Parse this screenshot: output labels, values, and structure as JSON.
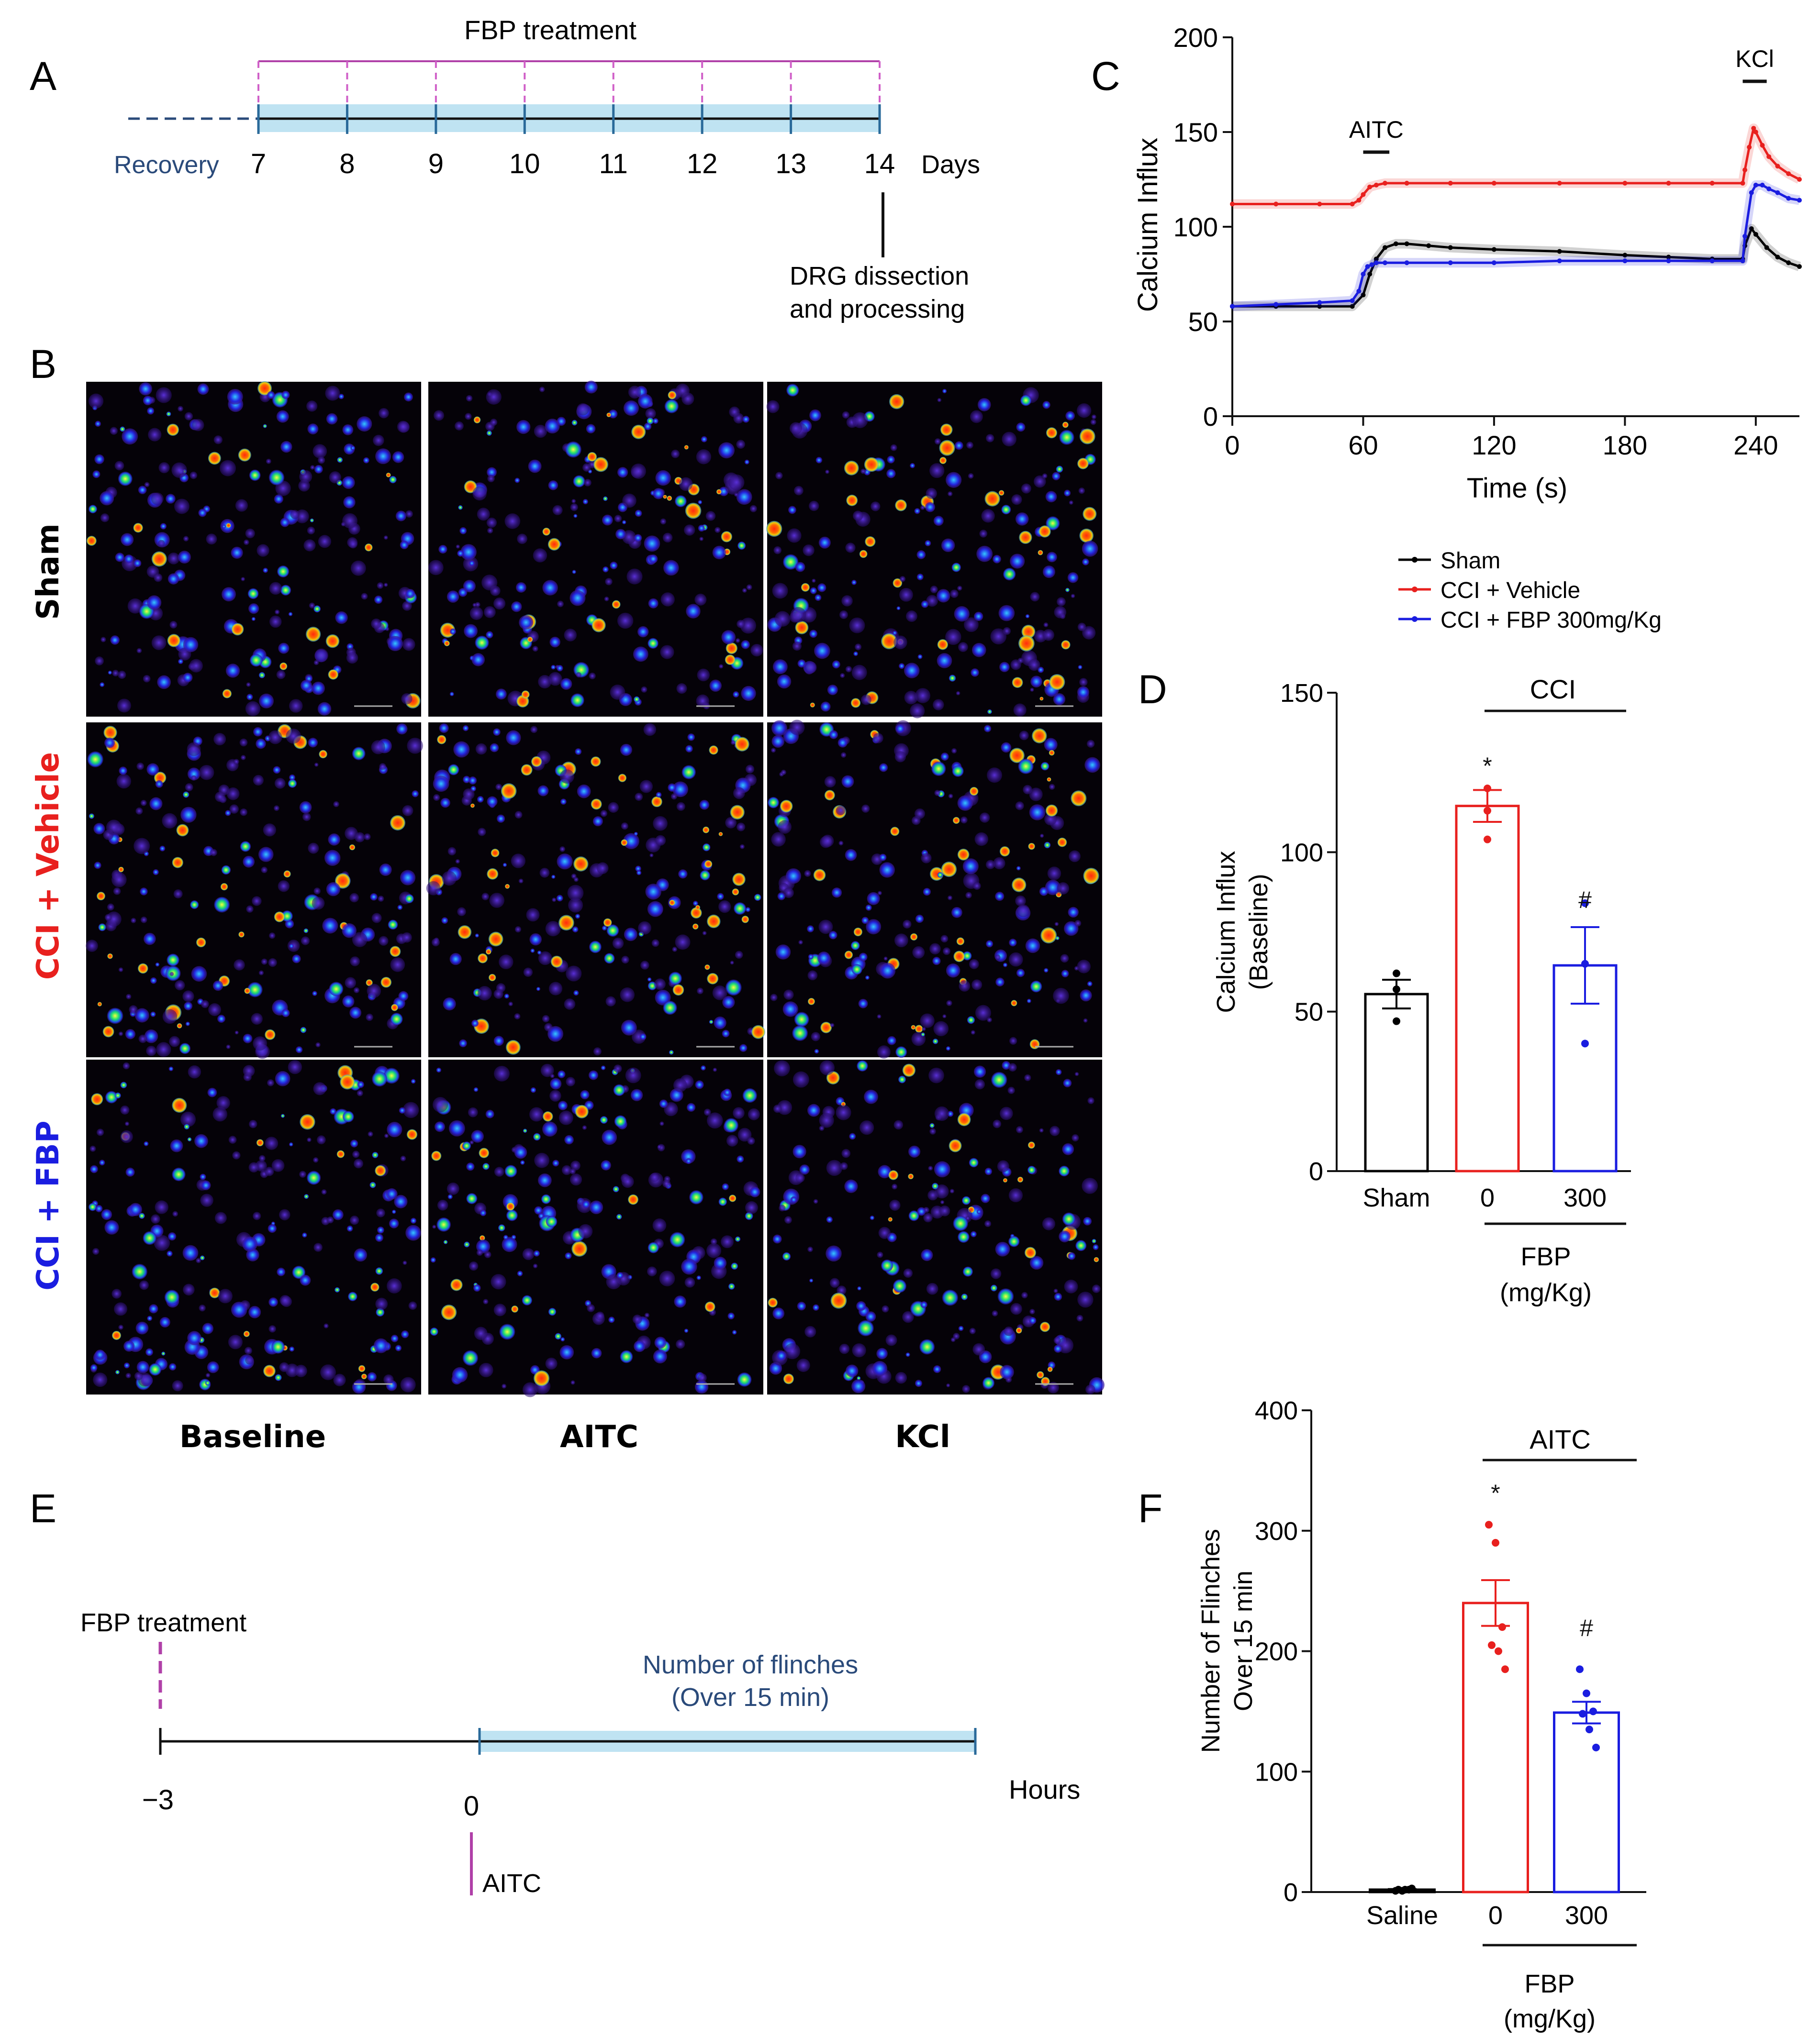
{
  "panel_labels": {
    "a": "A",
    "b": "B",
    "c": "C",
    "d": "D",
    "e": "E",
    "f": "F"
  },
  "colors": {
    "sham": "#000000",
    "vehicle": "#e8201e",
    "fbp": "#1a1de0",
    "timeline_blue": "#2a4a7a",
    "treatment": "#b040a8",
    "band": "#bfe3f2"
  },
  "panel_a": {
    "treatment_label": "FBP treatment",
    "recovery_label": "Recovery",
    "days": [
      "7",
      "8",
      "9",
      "10",
      "11",
      "12",
      "13",
      "14"
    ],
    "days_unit": "Days",
    "dissection_line1": "DRG dissection",
    "dissection_line2": "and processing"
  },
  "panel_b": {
    "rows": [
      "Sham",
      "CCI + Vehicle",
      "CCI + FBP"
    ],
    "columns": [
      "Baseline",
      "AITC",
      "KCl"
    ],
    "row_colors": [
      "#000000",
      "#e8201e",
      "#1a1de0"
    ]
  },
  "panel_e": {
    "treatment_label": "FBP treatment",
    "flinch_line1": "Number of flinches",
    "flinch_line2": "(Over 15 min)",
    "tick_minus3": "−3",
    "tick_0": "0",
    "hours_label": "Hours",
    "aitc_label": "AITC"
  },
  "chart_data": [
    {
      "id": "C",
      "type": "line",
      "xlabel": "Time (s)",
      "ylabel": "Calcium Influx",
      "xlim": [
        0,
        260
      ],
      "ylim": [
        0,
        200
      ],
      "xticks": [
        0,
        60,
        120,
        180,
        240
      ],
      "yticks": [
        0,
        50,
        100,
        150,
        200
      ],
      "annotations": [
        {
          "text": "AITC",
          "x_range": [
            60,
            72
          ]
        },
        {
          "text": "KCl",
          "x_range": [
            234,
            245
          ]
        }
      ],
      "legend": {
        "placement": "below"
      },
      "series": [
        {
          "name": "Sham",
          "color": "#000000",
          "x": [
            0,
            20,
            40,
            55,
            60,
            63,
            66,
            70,
            75,
            80,
            90,
            100,
            120,
            150,
            180,
            200,
            220,
            234,
            235,
            238,
            240,
            245,
            250,
            255,
            260
          ],
          "y": [
            58,
            58,
            58,
            58,
            64,
            75,
            83,
            89,
            91,
            91,
            90,
            89,
            88,
            87,
            85,
            84,
            83,
            83,
            90,
            99,
            96,
            89,
            84,
            81,
            79
          ]
        },
        {
          "name": "CCI + Vehicle",
          "color": "#e8201e",
          "x": [
            0,
            20,
            40,
            55,
            58,
            60,
            63,
            66,
            70,
            80,
            100,
            120,
            150,
            180,
            200,
            220,
            234,
            235,
            237,
            239,
            240,
            243,
            246,
            250,
            255,
            260
          ],
          "y": [
            112,
            112,
            112,
            112,
            114,
            117,
            121,
            122,
            123,
            123,
            123,
            123,
            123,
            123,
            123,
            123,
            123,
            130,
            142,
            152,
            150,
            143,
            137,
            132,
            128,
            125
          ]
        },
        {
          "name": "CCI + FBP 300mg/Kg",
          "color": "#1a1de0",
          "x": [
            0,
            20,
            40,
            55,
            58,
            60,
            62,
            64,
            66,
            70,
            80,
            100,
            120,
            150,
            180,
            200,
            220,
            234,
            235,
            238,
            240,
            243,
            246,
            250,
            255,
            260
          ],
          "y": [
            58,
            59,
            60,
            61,
            66,
            75,
            79,
            80,
            81,
            81,
            81,
            81,
            81,
            82,
            82,
            82,
            82,
            82,
            95,
            118,
            122,
            122,
            120,
            118,
            115,
            114
          ]
        }
      ]
    },
    {
      "id": "D",
      "type": "bar",
      "ylabel_line1": "Calcium Influx",
      "ylabel_line2": "(Baseline)",
      "categories": [
        "Sham",
        "0",
        "300"
      ],
      "ylim": [
        0,
        150
      ],
      "yticks": [
        0,
        50,
        100,
        150
      ],
      "values": [
        55.5,
        114.5,
        64.5
      ],
      "errors": [
        4.5,
        5,
        12
      ],
      "points": [
        [
          62,
          57,
          47
        ],
        [
          120,
          113,
          104
        ],
        [
          84,
          65,
          40
        ]
      ],
      "colors": [
        "#000000",
        "#e8201e",
        "#1a1de0"
      ],
      "markers": [
        "*",
        "#"
      ],
      "group_label": "CCI",
      "xgroup_line1": "FBP",
      "xgroup_line2": "(mg/Kg)"
    },
    {
      "id": "F",
      "type": "bar",
      "ylabel_line1": "Number of Flinches",
      "ylabel_line2": "Over 15 min",
      "categories": [
        "Saline",
        "0",
        "300"
      ],
      "ylim": [
        0,
        400
      ],
      "yticks": [
        0,
        100,
        200,
        300,
        400
      ],
      "values": [
        2,
        240,
        149
      ],
      "errors": [
        0.5,
        19,
        9
      ],
      "points": [
        [
          1,
          1,
          2,
          2,
          2,
          3
        ],
        [
          305,
          290,
          220,
          205,
          200,
          185
        ],
        [
          185,
          165,
          150,
          148,
          135,
          120
        ]
      ],
      "colors": [
        "#000000",
        "#e8201e",
        "#1a1de0"
      ],
      "markers": [
        "*",
        "#"
      ],
      "group_label": "AITC",
      "xgroup_line1": "FBP",
      "xgroup_line2": "(mg/Kg)"
    }
  ]
}
